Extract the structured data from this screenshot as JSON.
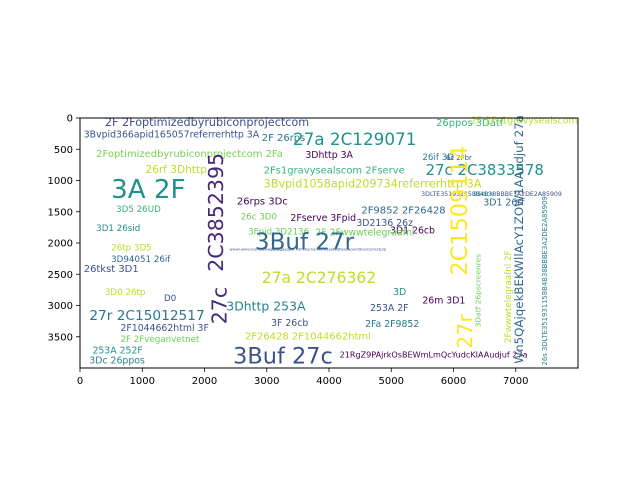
{
  "chart_data": {
    "type": "wordcloud",
    "title": "",
    "xlabel": "",
    "ylabel": "",
    "xlim": [
      0,
      8000
    ],
    "ylim": [
      4000,
      0
    ],
    "y_inverted": true,
    "grid": false,
    "legend": "none",
    "x_ticks": [
      "0",
      "1000",
      "2000",
      "3000",
      "4000",
      "5000",
      "6000",
      "7000"
    ],
    "y_ticks": [
      "0",
      "500",
      "1000",
      "1500",
      "2000",
      "2500",
      "3000",
      "3500"
    ],
    "words": [
      {
        "text": "2F 2Foptimizedbyrubiconprojectcom",
        "x": 400,
        "y": 130,
        "size": 180,
        "color": "#3b528b"
      },
      {
        "text": "3Bvpid366apid165057referrerhttp 3A",
        "x": 60,
        "y": 310,
        "size": 150,
        "color": "#3b528b"
      },
      {
        "text": "2F 26rps",
        "x": 2920,
        "y": 370,
        "size": 160,
        "color": "#2a788e"
      },
      {
        "text": "27a 2C129071",
        "x": 3420,
        "y": 430,
        "size": 270,
        "color": "#21918c"
      },
      {
        "text": "2Foptimizedbyrubiconprojectcom 2Fa",
        "x": 260,
        "y": 620,
        "size": 160,
        "color": "#7ad151"
      },
      {
        "text": "3Dhttp 3A",
        "x": 3620,
        "y": 640,
        "size": 150,
        "color": "#440154"
      },
      {
        "text": "26ppos 3Datf",
        "x": 5720,
        "y": 130,
        "size": 160,
        "color": "#35b779"
      },
      {
        "text": "2F 2Fs1gravysealscom",
        "x": 6280,
        "y": 90,
        "size": 150,
        "color": "#bddf26"
      },
      {
        "text": "26if 3D",
        "x": 5500,
        "y": 670,
        "size": 140,
        "color": "#26828e"
      },
      {
        "text": "6c 2Fbr",
        "x": 5880,
        "y": 670,
        "size": 110,
        "color": "#3b528b"
      },
      {
        "text": "26rf 3Dhttp",
        "x": 1050,
        "y": 880,
        "size": 170,
        "color": "#bddf26"
      },
      {
        "text": "2Fs1gravysealscom 2Fserve",
        "x": 2950,
        "y": 890,
        "size": 160,
        "color": "#35b779"
      },
      {
        "text": "27c 2C3833578",
        "x": 5550,
        "y": 910,
        "size": 240,
        "color": "#21918c"
      },
      {
        "text": "3A 2F",
        "x": 500,
        "y": 1280,
        "size": 420,
        "color": "#21918c"
      },
      {
        "text": "3Bvpid1058apid209734referrerhttp 3A",
        "x": 2950,
        "y": 1110,
        "size": 180,
        "color": "#bddf26"
      },
      {
        "text": "3DLTE351931158B4B38BBBE3A2DE2A85909",
        "x": 5480,
        "y": 1250,
        "size": 100,
        "color": "#3b528b"
      },
      {
        "text": "26clck",
        "x": 6320,
        "y": 1250,
        "size": 100,
        "color": "#21918c"
      },
      {
        "text": "26rps 3Dc",
        "x": 2520,
        "y": 1380,
        "size": 160,
        "color": "#440154"
      },
      {
        "text": "3D1 26rf",
        "x": 6480,
        "y": 1400,
        "size": 150,
        "color": "#31688e"
      },
      {
        "text": "3D5 26UD",
        "x": 580,
        "y": 1500,
        "size": 140,
        "color": "#35b779"
      },
      {
        "text": "2F9852 2F26428",
        "x": 4520,
        "y": 1530,
        "size": 160,
        "color": "#31688e"
      },
      {
        "text": "26c 3D0",
        "x": 2580,
        "y": 1620,
        "size": 140,
        "color": "#6ece58"
      },
      {
        "text": "2Fserve 3Fpid",
        "x": 3380,
        "y": 1650,
        "size": 150,
        "color": "#440154"
      },
      {
        "text": "3D2136 26z",
        "x": 4440,
        "y": 1730,
        "size": 150,
        "color": "#3b528b"
      },
      {
        "text": "3D1 26sid",
        "x": 260,
        "y": 1810,
        "size": 140,
        "color": "#21918c"
      },
      {
        "text": "2C3852395",
        "x": 2300,
        "y": 2460,
        "size": 330,
        "color": "#482878",
        "rotate": true
      },
      {
        "text": "3Fpid 3D2136",
        "x": 2700,
        "y": 1860,
        "size": 140,
        "color": "#6ece58"
      },
      {
        "text": "3D1 26cb",
        "x": 4980,
        "y": 1850,
        "size": 150,
        "color": "#440154"
      },
      {
        "text": "2F 2Fwwwtelegraafnl",
        "x": 3780,
        "y": 1880,
        "size": 150,
        "color": "#6ece58"
      },
      {
        "text": "3Buf 27r",
        "x": 2810,
        "y": 2100,
        "size": 370,
        "color": "#31688e"
      },
      {
        "text": "wwwLawrenceMeowwggogggyppvl...dFEEarnanne 21eetedPasswoorddnercorrectpip",
        "x": 2400,
        "y": 2120,
        "size": 60,
        "color": "#3b528b"
      },
      {
        "text": "26tp 3D5",
        "x": 500,
        "y": 2120,
        "size": 140,
        "color": "#bddf26"
      },
      {
        "text": "3D94051 26if",
        "x": 500,
        "y": 2300,
        "size": 140,
        "color": "#31688e"
      },
      {
        "text": "2C1509114",
        "x": 6220,
        "y": 2520,
        "size": 360,
        "color": "#fde725",
        "rotate": true
      },
      {
        "text": "26tkst 3D1",
        "x": 60,
        "y": 2460,
        "size": 160,
        "color": "#3b528b"
      },
      {
        "text": "27a 2C276362",
        "x": 2920,
        "y": 2640,
        "size": 250,
        "color": "#bddf26"
      },
      {
        "text": "27c",
        "x": 2350,
        "y": 3300,
        "size": 330,
        "color": "#482878",
        "rotate": true
      },
      {
        "text": "3D",
        "x": 5030,
        "y": 2830,
        "size": 150,
        "color": "#21918c"
      },
      {
        "text": "26m 3D1",
        "x": 5500,
        "y": 2970,
        "size": 150,
        "color": "#440154"
      },
      {
        "text": "3D0 26tp",
        "x": 400,
        "y": 2830,
        "size": 140,
        "color": "#bddf26"
      },
      {
        "text": "D0",
        "x": 1350,
        "y": 2930,
        "size": 140,
        "color": "#3b528b"
      },
      {
        "text": "3Dhttp 253A",
        "x": 2350,
        "y": 3080,
        "size": 200,
        "color": "#26828e"
      },
      {
        "text": "253A 2F",
        "x": 4660,
        "y": 3090,
        "size": 150,
        "color": "#3b528b"
      },
      {
        "text": "3Datf 26pscreenres",
        "x": 6430,
        "y": 3350,
        "size": 120,
        "color": "#6ece58",
        "rotate": true
      },
      {
        "text": "27r 2C15012517",
        "x": 150,
        "y": 3230,
        "size": 220,
        "color": "#2a788e"
      },
      {
        "text": "3F 26cb",
        "x": 3070,
        "y": 3330,
        "size": 150,
        "color": "#3b528b"
      },
      {
        "text": "2Fa 2F9852",
        "x": 4580,
        "y": 3340,
        "size": 150,
        "color": "#2a788e"
      },
      {
        "text": "2F1044662html 3F",
        "x": 650,
        "y": 3410,
        "size": 150,
        "color": "#3b528b"
      },
      {
        "text": "2F26428 2F1044662html",
        "x": 2650,
        "y": 3540,
        "size": 160,
        "color": "#bddf26"
      },
      {
        "text": "2F 2Fveganvetnet",
        "x": 650,
        "y": 3580,
        "size": 140,
        "color": "#6ece58"
      },
      {
        "text": "27r",
        "x": 6300,
        "y": 3690,
        "size": 330,
        "color": "#fde725",
        "rotate": true
      },
      {
        "text": "253A 252F",
        "x": 200,
        "y": 3770,
        "size": 150,
        "color": "#21918c"
      },
      {
        "text": "3Buf 27c",
        "x": 2460,
        "y": 3930,
        "size": 360,
        "color": "#3b528b"
      },
      {
        "text": "21RgZ9PAjrkOsBEWmLmQcYudcKIAAudjuf 27a",
        "x": 4170,
        "y": 3830,
        "size": 130,
        "color": "#440154"
      },
      {
        "text": "3Dc 26ppos",
        "x": 150,
        "y": 3930,
        "size": 150,
        "color": "#26828e"
      },
      {
        "text": "Wn5QAjqekBEKWllAcY1ZOW1AAudjuf 27a",
        "x": 7120,
        "y": 3930,
        "size": 190,
        "color": "#31688e",
        "rotate": true
      },
      {
        "text": "2Fwwwtelegraafnl 2F",
        "x": 6920,
        "y": 3600,
        "size": 140,
        "color": "#bddf26",
        "rotate": true
      },
      {
        "text": "26s 3DLTE351931158B4B38BBBE3A2DE2A85909",
        "x": 7500,
        "y": 3960,
        "size": 110,
        "color": "#26828e",
        "rotate": true
      }
    ]
  }
}
